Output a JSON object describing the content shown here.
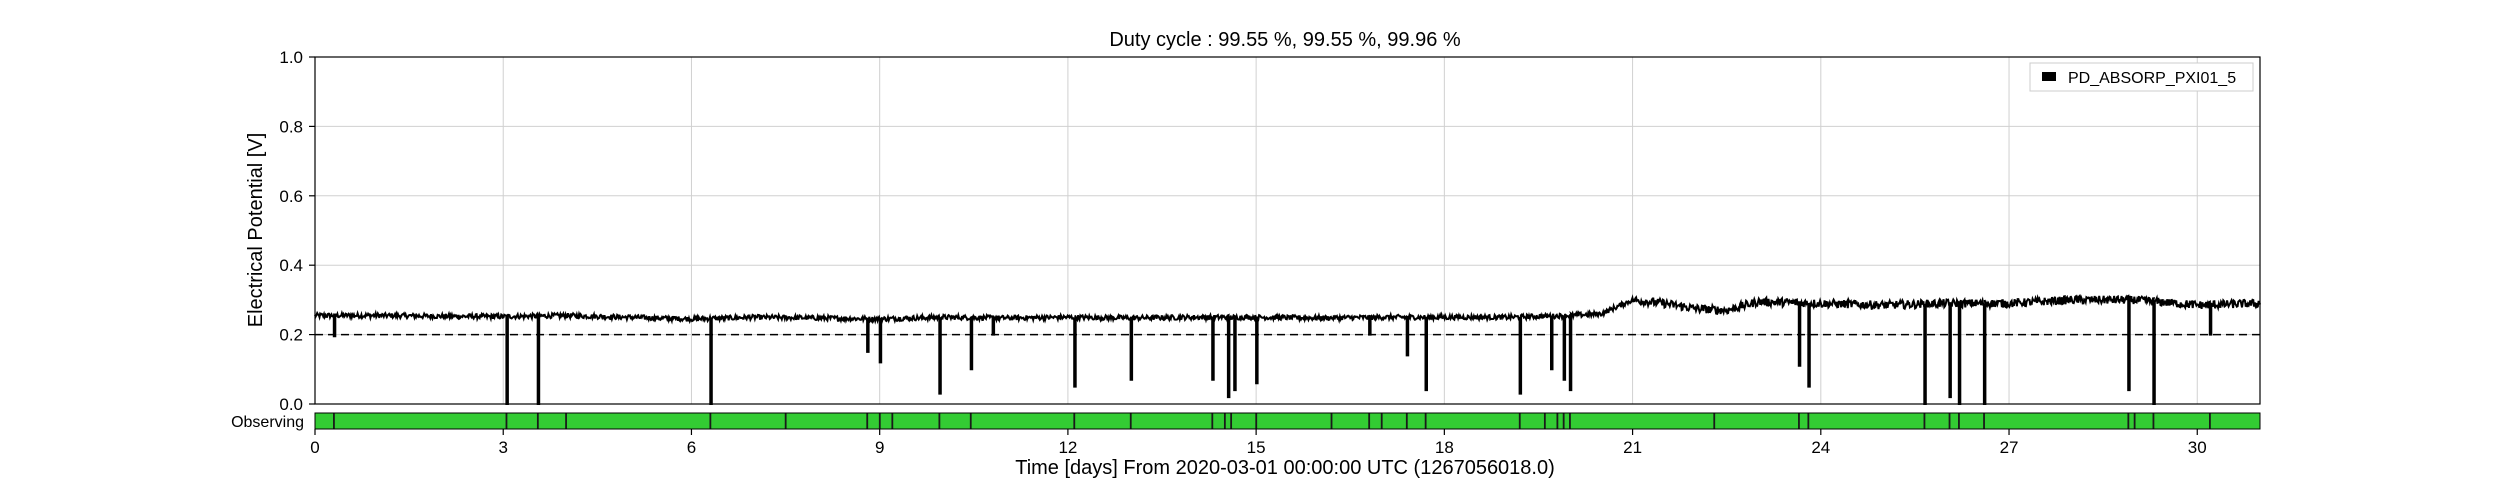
{
  "chart_data": {
    "type": "line",
    "title": "Duty cycle : 99.55 %, 99.55 %, 99.96 %",
    "xlabel": "Time [days] From 2020-03-01 00:00:00 UTC (1267056018.0)",
    "ylabel": "Electrical Potential [V]",
    "xlim": [
      0,
      31
    ],
    "ylim": [
      0.0,
      1.0
    ],
    "x_ticks": [
      0,
      3,
      6,
      9,
      12,
      15,
      18,
      21,
      24,
      27,
      30
    ],
    "y_ticks": [
      0.0,
      0.2,
      0.4,
      0.6,
      0.8,
      1.0
    ],
    "grid": true,
    "legend": {
      "position": "top-right",
      "entries": [
        "PD_ABSORP_PXI01_5"
      ]
    },
    "threshold": {
      "y": 0.2,
      "style": "dashed"
    },
    "series": [
      {
        "name": "PD_ABSORP_PXI01_5",
        "color": "#000000",
        "baseline": [
          [
            0,
            0.255
          ],
          [
            1,
            0.255
          ],
          [
            2,
            0.253
          ],
          [
            3,
            0.252
          ],
          [
            4,
            0.255
          ],
          [
            5,
            0.25
          ],
          [
            6,
            0.245
          ],
          [
            7,
            0.25
          ],
          [
            8,
            0.248
          ],
          [
            9,
            0.245
          ],
          [
            10,
            0.25
          ],
          [
            11,
            0.248
          ],
          [
            12,
            0.25
          ],
          [
            13,
            0.248
          ],
          [
            14,
            0.25
          ],
          [
            15,
            0.25
          ],
          [
            16,
            0.248
          ],
          [
            17,
            0.25
          ],
          [
            18,
            0.25
          ],
          [
            19,
            0.25
          ],
          [
            20,
            0.255
          ],
          [
            20.5,
            0.26
          ],
          [
            21,
            0.3
          ],
          [
            21.5,
            0.29
          ],
          [
            22,
            0.275
          ],
          [
            22.5,
            0.27
          ],
          [
            23,
            0.295
          ],
          [
            24,
            0.29
          ],
          [
            25,
            0.285
          ],
          [
            26,
            0.29
          ],
          [
            27,
            0.29
          ],
          [
            28,
            0.3
          ],
          [
            29,
            0.3
          ],
          [
            30,
            0.285
          ],
          [
            31,
            0.29
          ]
        ],
        "dips": [
          [
            0.3,
            0.195
          ],
          [
            3.05,
            0.0
          ],
          [
            3.55,
            0.0
          ],
          [
            6.3,
            0.0
          ],
          [
            8.8,
            0.15
          ],
          [
            9.0,
            0.12
          ],
          [
            9.95,
            0.03
          ],
          [
            10.45,
            0.1
          ],
          [
            10.8,
            0.2
          ],
          [
            12.1,
            0.05
          ],
          [
            13.0,
            0.07
          ],
          [
            14.3,
            0.07
          ],
          [
            14.55,
            0.02
          ],
          [
            14.65,
            0.04
          ],
          [
            15.0,
            0.06
          ],
          [
            16.8,
            0.2
          ],
          [
            17.4,
            0.14
          ],
          [
            17.7,
            0.04
          ],
          [
            19.2,
            0.03
          ],
          [
            19.7,
            0.1
          ],
          [
            19.9,
            0.07
          ],
          [
            20.0,
            0.04
          ],
          [
            23.65,
            0.11
          ],
          [
            23.8,
            0.05
          ],
          [
            25.65,
            0.0
          ],
          [
            26.05,
            0.02
          ],
          [
            26.2,
            0.0
          ],
          [
            26.6,
            0.0
          ],
          [
            28.9,
            0.04
          ],
          [
            29.3,
            0.0
          ],
          [
            30.2,
            0.2
          ]
        ]
      }
    ],
    "segments": {
      "label": "Observing",
      "color": "#33cc33",
      "range": [
        0,
        31
      ],
      "gaps": [
        0.3,
        3.05,
        3.55,
        4.0,
        6.3,
        7.5,
        8.8,
        9.0,
        9.2,
        9.95,
        10.45,
        12.1,
        13.0,
        14.3,
        14.5,
        14.6,
        15.0,
        16.2,
        16.8,
        17.0,
        17.4,
        17.7,
        19.2,
        19.6,
        19.8,
        19.9,
        20.0,
        22.3,
        23.65,
        23.8,
        25.65,
        26.05,
        26.2,
        26.6,
        28.9,
        29.0,
        29.3,
        30.2
      ]
    }
  }
}
